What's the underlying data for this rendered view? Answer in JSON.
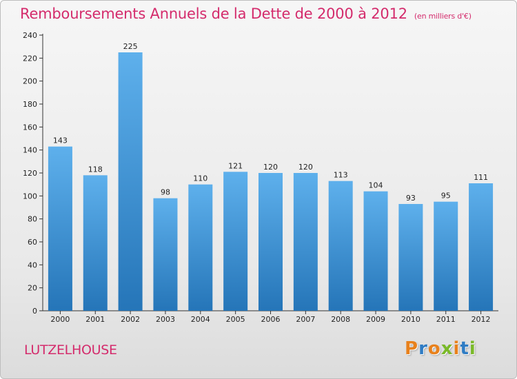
{
  "header": {
    "title": "Remboursements Annuels de la Dette de 2000 à 2012",
    "unit": "(en milliers d'€)"
  },
  "footer": {
    "commune": "LUTZELHOUSE",
    "logo_text": "Proxiti"
  },
  "colors": {
    "title": "#d42b6c",
    "bar_top": "#5eb0ec",
    "bar_bottom": "#2575b8",
    "logo_letters": [
      "#e8811c",
      "#2f7cc4",
      "#e8811c",
      "#7ab929",
      "#e8811c",
      "#2f7cc4",
      "#7ab929"
    ]
  },
  "chart_data": {
    "type": "bar",
    "title": "Remboursements Annuels de la Dette de 2000 à 2012",
    "subtitle": "(en milliers d'€)",
    "xlabel": "",
    "ylabel": "",
    "ylim": [
      0,
      240
    ],
    "yticks": [
      0,
      20,
      40,
      60,
      80,
      100,
      120,
      140,
      160,
      180,
      200,
      220,
      240
    ],
    "grid": false,
    "legend": "none",
    "categories": [
      "2000",
      "2001",
      "2002",
      "2003",
      "2004",
      "2005",
      "2006",
      "2007",
      "2008",
      "2009",
      "2010",
      "2011",
      "2012"
    ],
    "values": [
      143,
      118,
      225,
      98,
      110,
      121,
      120,
      120,
      113,
      104,
      93,
      95,
      111
    ]
  }
}
